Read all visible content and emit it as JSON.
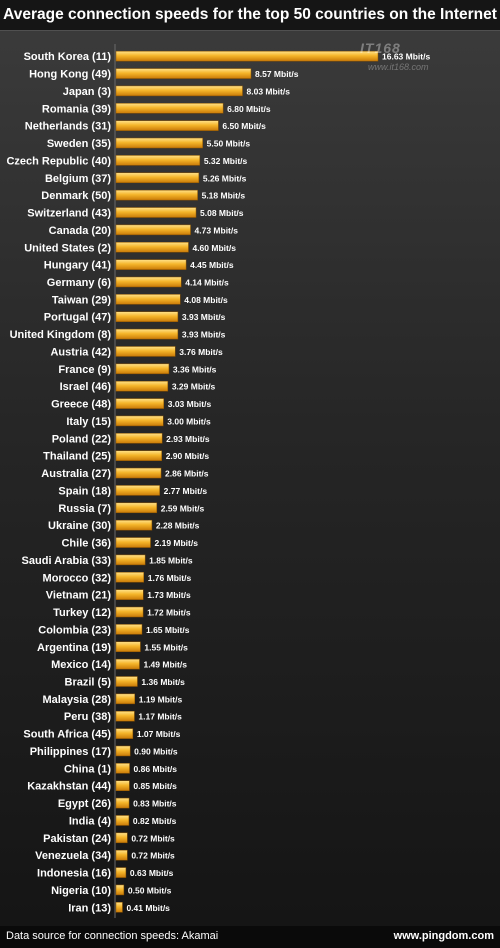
{
  "chart_data": {
    "type": "bar",
    "orientation": "horizontal",
    "title": "Average connection speeds for the top 50 countries on the Internet",
    "value_suffix": " Mbit/s",
    "categories": [
      "South Korea (11)",
      "Hong Kong (49)",
      "Japan (3)",
      "Romania (39)",
      "Netherlands (31)",
      "Sweden (35)",
      "Czech Republic (40)",
      "Belgium (37)",
      "Denmark (50)",
      "Switzerland (43)",
      "Canada (20)",
      "United States (2)",
      "Hungary (41)",
      "Germany (6)",
      "Taiwan (29)",
      "Portugal (47)",
      "United Kingdom (8)",
      "Austria (42)",
      "France (9)",
      "Israel (46)",
      "Greece (48)",
      "Italy (15)",
      "Poland (22)",
      "Thailand (25)",
      "Australia (27)",
      "Spain (18)",
      "Russia (7)",
      "Ukraine (30)",
      "Chile (36)",
      "Saudi Arabia (33)",
      "Morocco (32)",
      "Vietnam (21)",
      "Turkey (12)",
      "Colombia (23)",
      "Argentina (19)",
      "Mexico (14)",
      "Brazil (5)",
      "Malaysia (28)",
      "Peru (38)",
      "South Africa (45)",
      "Philippines (17)",
      "China (1)",
      "Kazakhstan (44)",
      "Egypt (26)",
      "India (4)",
      "Pakistan (24)",
      "Venezuela (34)",
      "Indonesia (16)",
      "Nigeria (10)",
      "Iran (13)"
    ],
    "values": [
      16.63,
      8.57,
      8.03,
      6.8,
      6.5,
      5.5,
      5.32,
      5.26,
      5.18,
      5.08,
      4.73,
      4.6,
      4.45,
      4.14,
      4.08,
      3.93,
      3.93,
      3.76,
      3.36,
      3.29,
      3.03,
      3.0,
      2.93,
      2.9,
      2.86,
      2.77,
      2.59,
      2.28,
      2.19,
      1.85,
      1.76,
      1.73,
      1.72,
      1.65,
      1.55,
      1.49,
      1.36,
      1.19,
      1.17,
      1.07,
      0.9,
      0.86,
      0.85,
      0.83,
      0.82,
      0.72,
      0.72,
      0.63,
      0.5,
      0.41
    ],
    "bar_color": "#f0a820",
    "grid": false,
    "legend": "none"
  },
  "footer": {
    "source": "Data source for connection speeds: Akamai",
    "credit": "www.pingdom.com"
  },
  "watermark": {
    "brand": "IT168",
    "url": "www.it168.com"
  }
}
